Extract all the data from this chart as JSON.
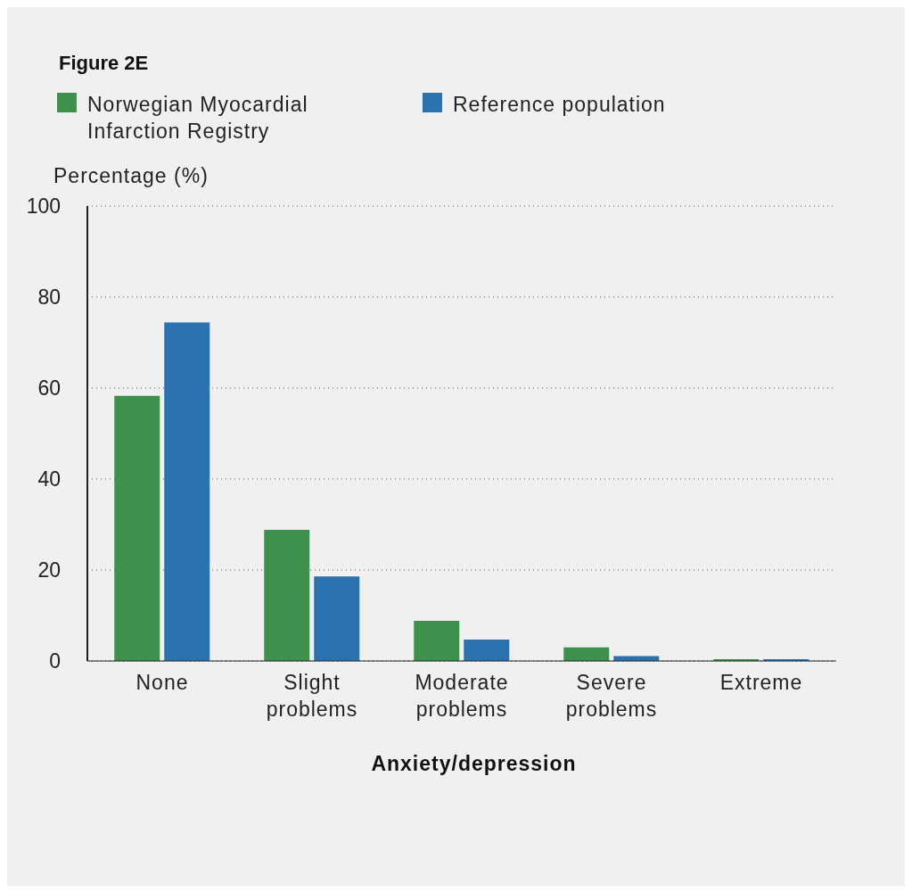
{
  "chart_data": {
    "type": "bar",
    "title": "Figure 2E",
    "xlabel": "Anxiety/depression",
    "ylabel": "Percentage (%)",
    "categories": [
      "None",
      "Slight problems",
      "Moderate problems",
      "Severe problems",
      "Extreme"
    ],
    "series": [
      {
        "name": "Norwegian Myocardial Infarction Registry",
        "color": "#3e914d",
        "values": [
          58.3,
          28.8,
          8.8,
          3.0,
          0.4
        ]
      },
      {
        "name": "Reference population",
        "color": "#2a72b0",
        "values": [
          74.4,
          18.6,
          4.7,
          1.1,
          0.4
        ]
      }
    ],
    "ylim": [
      0,
      100
    ],
    "yticks": [
      0,
      20,
      40,
      60,
      80,
      100
    ],
    "grid": "y",
    "legend": "top left"
  }
}
